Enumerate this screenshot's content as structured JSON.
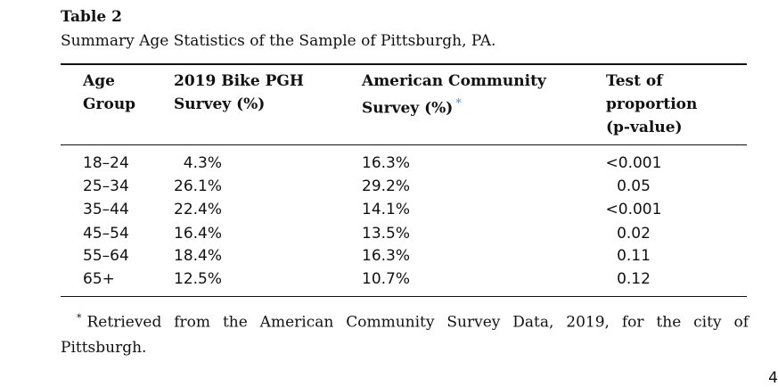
{
  "table": {
    "label": "Table 2",
    "caption": "Summary Age Statistics of the Sample of Pittsburgh, PA.",
    "headers": {
      "age": [
        "Age",
        "Group"
      ],
      "bike": [
        "2019 Bike PGH",
        "Survey (%)"
      ],
      "acs": [
        "American Community",
        "Survey (%)"
      ],
      "acs_mark": "*",
      "test": [
        "Test of",
        "proportion",
        "(p-value)"
      ]
    },
    "rows": [
      {
        "age": "18–24",
        "bike": "4.3%",
        "acs": "16.3%",
        "p": "<0.001"
      },
      {
        "age": "25–34",
        "bike": "26.1%",
        "acs": "29.2%",
        "p": "0.05"
      },
      {
        "age": "35–44",
        "bike": "22.4%",
        "acs": "14.1%",
        "p": "<0.001"
      },
      {
        "age": "45–54",
        "bike": "16.4%",
        "acs": "13.5%",
        "p": "0.02"
      },
      {
        "age": "55–64",
        "bike": "18.4%",
        "acs": "16.3%",
        "p": "0.11"
      },
      {
        "age": "65+",
        "bike": "12.5%",
        "acs": "10.7%",
        "p": "0.12"
      }
    ]
  },
  "footnote": {
    "mark": "*",
    "text": "Retrieved from the American Community Survey Data, 2019, for the city of Pittsburgh."
  },
  "page_number_fragment": "4"
}
